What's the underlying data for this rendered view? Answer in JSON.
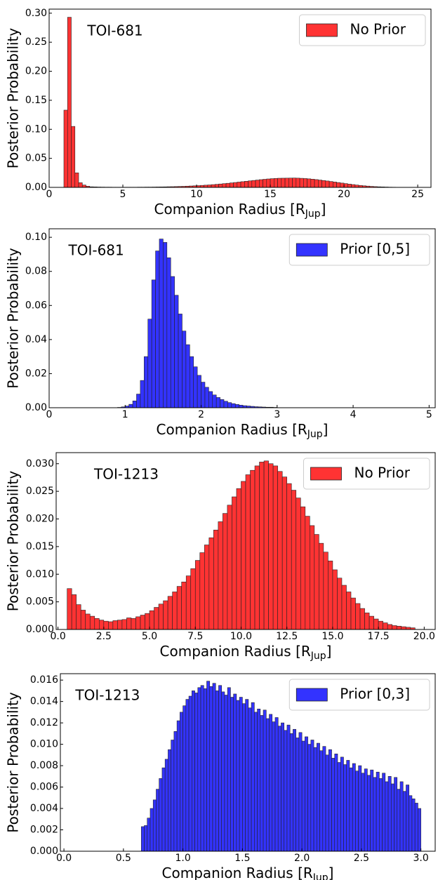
{
  "chart_data": [
    {
      "type": "histogram",
      "annotation": "TOI-681",
      "ylabel": "Posterior Probability",
      "xlabel": [
        "Companion Radius [R",
        "Jup",
        "]"
      ],
      "legend": "upper right",
      "bins": [
        1,
        1.25,
        1.5,
        1.75,
        2,
        2.25,
        2.5,
        2.75,
        3,
        3.25,
        3.5,
        3.75,
        4,
        4.25,
        4.5,
        4.75,
        5,
        5.25,
        5.5,
        5.75,
        6,
        6.25,
        6.5,
        6.75,
        7,
        7.25,
        7.5,
        7.75,
        8,
        8.25,
        8.5,
        8.75,
        9,
        9.25,
        9.5,
        9.75,
        10,
        10.25,
        10.5,
        10.75,
        11,
        11.25,
        11.5,
        11.75,
        12,
        12.25,
        12.5,
        12.75,
        13,
        13.25,
        13.5,
        13.75,
        14,
        14.25,
        14.5,
        14.75,
        15,
        15.25,
        15.5,
        15.75,
        16,
        16.25,
        16.5,
        16.75,
        17,
        17.25,
        17.5,
        17.75,
        18,
        18.25,
        18.5,
        18.75,
        19,
        19.25,
        19.5,
        19.75,
        20,
        20.25,
        20.5,
        20.75,
        21,
        21.25,
        21.5,
        21.75,
        22,
        22.25,
        22.5,
        22.75,
        23,
        23.25,
        23.5,
        23.75,
        24,
        24.25,
        24.5,
        24.75,
        25
      ],
      "series": [
        {
          "name": "No Prior",
          "color": "#ff3333",
          "values": [
            0.133,
            0.293,
            0.105,
            0.025,
            0.008,
            0.004,
            0.002,
            0.001,
            0.0008,
            0.0006,
            0.0005,
            0.0004,
            0.0004,
            0.0003,
            0.0003,
            0.0003,
            0.0003,
            0.0003,
            0.0003,
            0.0003,
            0.0004,
            0.0004,
            0.0005,
            0.0005,
            0.0006,
            0.0007,
            0.0008,
            0.0009,
            0.0011,
            0.0012,
            0.0014,
            0.0016,
            0.0018,
            0.0021,
            0.0024,
            0.0027,
            0.003,
            0.0034,
            0.0038,
            0.0042,
            0.0047,
            0.0052,
            0.0058,
            0.0064,
            0.007,
            0.0077,
            0.0084,
            0.0091,
            0.0098,
            0.0105,
            0.0112,
            0.0119,
            0.0126,
            0.0133,
            0.0139,
            0.0145,
            0.015,
            0.0154,
            0.0157,
            0.0158,
            0.0159,
            0.016,
            0.0161,
            0.0159,
            0.0156,
            0.0152,
            0.0147,
            0.0141,
            0.0134,
            0.0126,
            0.0118,
            0.011,
            0.0101,
            0.0092,
            0.0083,
            0.0074,
            0.0065,
            0.0056,
            0.0048,
            0.004,
            0.0033,
            0.0027,
            0.0022,
            0.0017,
            0.0013,
            0.001,
            0.0008,
            0.0006,
            0.0004,
            0.0003,
            0.0002,
            0.0002,
            0.0001,
            0.0001,
            0.0001,
            0.0001
          ]
        }
      ],
      "xlim": [
        0,
        25.9
      ],
      "ylim": [
        0,
        0.307
      ],
      "xticks": [
        0,
        5,
        10,
        15,
        20,
        25
      ],
      "yticks": [
        {
          "value": 0,
          "label": "0.00"
        },
        {
          "value": 0.05,
          "label": "0.05"
        },
        {
          "value": 0.1,
          "label": "0.10"
        },
        {
          "value": 0.15,
          "label": "0.15"
        },
        {
          "value": 0.2,
          "label": "0.20"
        },
        {
          "value": 0.25,
          "label": "0.25"
        },
        {
          "value": 0.3,
          "label": "0.30"
        }
      ]
    },
    {
      "type": "histogram",
      "annotation": "TOI-681",
      "ylabel": "Posterior Probability",
      "xlabel": [
        "Companion Radius [R",
        "Jup",
        "]"
      ],
      "legend": "upper right",
      "bins": [
        0.9,
        0.95,
        1,
        1.05,
        1.1,
        1.15,
        1.2,
        1.25,
        1.3,
        1.35,
        1.4,
        1.45,
        1.5,
        1.55,
        1.6,
        1.65,
        1.7,
        1.75,
        1.8,
        1.85,
        1.9,
        1.95,
        2,
        2.05,
        2.1,
        2.15,
        2.2,
        2.25,
        2.3,
        2.35,
        2.4,
        2.45,
        2.5,
        2.55,
        2.6,
        2.65,
        2.7,
        2.75,
        2.8,
        2.85,
        2.9,
        2.95,
        3
      ],
      "series": [
        {
          "name": "Prior [0,5]",
          "color": "#3333ff",
          "values": [
            0.0002,
            0.0005,
            0.001,
            0.002,
            0.004,
            0.008,
            0.016,
            0.03,
            0.052,
            0.075,
            0.092,
            0.099,
            0.097,
            0.088,
            0.077,
            0.066,
            0.055,
            0.045,
            0.037,
            0.03,
            0.024,
            0.019,
            0.015,
            0.012,
            0.0095,
            0.0075,
            0.006,
            0.0048,
            0.0038,
            0.003,
            0.0024,
            0.0019,
            0.0015,
            0.0012,
            0.001,
            0.0008,
            0.0006,
            0.0005,
            0.0004,
            0.0003,
            0.0003,
            0.0002
          ]
        }
      ],
      "xlim": [
        0,
        5.08
      ],
      "ylim": [
        0,
        0.105
      ],
      "xticks": [
        0,
        1,
        2,
        3,
        4,
        5
      ],
      "yticks": [
        {
          "value": 0,
          "label": "0.00"
        },
        {
          "value": 0.02,
          "label": "0.02"
        },
        {
          "value": 0.04,
          "label": "0.04"
        },
        {
          "value": 0.06,
          "label": "0.06"
        },
        {
          "value": 0.08,
          "label": "0.08"
        },
        {
          "value": 0.1,
          "label": "0.10"
        }
      ]
    },
    {
      "type": "histogram",
      "annotation": "TOI-1213",
      "ylabel": "Posterior Probability",
      "xlabel": [
        "Companion Radius [R",
        "Jup",
        "]"
      ],
      "legend": "upper right",
      "bins": [
        0.5,
        0.75,
        1,
        1.25,
        1.5,
        1.75,
        2,
        2.25,
        2.5,
        2.75,
        3,
        3.25,
        3.5,
        3.75,
        4,
        4.25,
        4.5,
        4.75,
        5,
        5.25,
        5.5,
        5.75,
        6,
        6.25,
        6.5,
        6.75,
        7,
        7.25,
        7.5,
        7.75,
        8,
        8.25,
        8.5,
        8.75,
        9,
        9.25,
        9.5,
        9.75,
        10,
        10.25,
        10.5,
        10.75,
        11,
        11.25,
        11.5,
        11.75,
        12,
        12.25,
        12.5,
        12.75,
        13,
        13.25,
        13.5,
        13.75,
        14,
        14.25,
        14.5,
        14.75,
        15,
        15.25,
        15.5,
        15.75,
        16,
        16.25,
        16.5,
        16.75,
        17,
        17.25,
        17.5,
        17.75,
        18,
        18.25,
        18.5,
        18.75,
        19,
        19.25,
        19.5
      ],
      "series": [
        {
          "name": "No Prior",
          "color": "#ff3333",
          "values": [
            0.0074,
            0.0063,
            0.0045,
            0.0035,
            0.0028,
            0.0024,
            0.002,
            0.0017,
            0.0015,
            0.0014,
            0.0016,
            0.0017,
            0.0018,
            0.0021,
            0.002,
            0.0023,
            0.0026,
            0.0029,
            0.0034,
            0.004,
            0.0046,
            0.0052,
            0.006,
            0.0068,
            0.0078,
            0.0086,
            0.0097,
            0.011,
            0.0125,
            0.0139,
            0.0153,
            0.0166,
            0.018,
            0.0195,
            0.021,
            0.0225,
            0.024,
            0.0255,
            0.0268,
            0.028,
            0.0288,
            0.0296,
            0.0303,
            0.0305,
            0.03,
            0.0296,
            0.0286,
            0.0276,
            0.0264,
            0.0252,
            0.0238,
            0.0222,
            0.0205,
            0.0188,
            0.0172,
            0.0156,
            0.014,
            0.0124,
            0.0108,
            0.0093,
            0.008,
            0.0068,
            0.0057,
            0.0047,
            0.0038,
            0.003,
            0.0024,
            0.0019,
            0.0015,
            0.0012,
            0.0009,
            0.0007,
            0.0006,
            0.0005,
            0.0004,
            0.0003
          ]
        }
      ],
      "xlim": [
        -0.1,
        20.6
      ],
      "ylim": [
        0,
        0.032
      ],
      "xticks": [
        {
          "value": 0,
          "label": "0.0"
        },
        {
          "value": 2.5,
          "label": "2.5"
        },
        {
          "value": 5,
          "label": "5.0"
        },
        {
          "value": 7.5,
          "label": "7.5"
        },
        {
          "value": 10,
          "label": "10.0"
        },
        {
          "value": 12.5,
          "label": "12.5"
        },
        {
          "value": 15,
          "label": "15.0"
        },
        {
          "value": 17.5,
          "label": "17.5"
        },
        {
          "value": 20,
          "label": "20.0"
        }
      ],
      "yticks": [
        {
          "value": 0,
          "label": "0.000"
        },
        {
          "value": 0.005,
          "label": "0.005"
        },
        {
          "value": 0.01,
          "label": "0.010"
        },
        {
          "value": 0.015,
          "label": "0.015"
        },
        {
          "value": 0.02,
          "label": "0.020"
        },
        {
          "value": 0.025,
          "label": "0.025"
        },
        {
          "value": 0.03,
          "label": "0.030"
        }
      ]
    },
    {
      "type": "histogram",
      "annotation": "TOI-1213",
      "ylabel": "Posterior Probability",
      "xlabel": [
        "Companion Radius [R",
        "Jup",
        "]"
      ],
      "legend": "upper right",
      "bins": [
        0.65,
        0.675,
        0.7,
        0.725,
        0.75,
        0.775,
        0.8,
        0.825,
        0.85,
        0.875,
        0.9,
        0.925,
        0.95,
        0.975,
        1,
        1.025,
        1.05,
        1.075,
        1.1,
        1.125,
        1.15,
        1.175,
        1.2,
        1.225,
        1.25,
        1.275,
        1.3,
        1.325,
        1.35,
        1.375,
        1.4,
        1.425,
        1.45,
        1.475,
        1.5,
        1.525,
        1.55,
        1.575,
        1.6,
        1.625,
        1.65,
        1.675,
        1.7,
        1.725,
        1.75,
        1.775,
        1.8,
        1.825,
        1.85,
        1.875,
        1.9,
        1.925,
        1.95,
        1.975,
        2,
        2.025,
        2.05,
        2.075,
        2.1,
        2.125,
        2.15,
        2.175,
        2.2,
        2.225,
        2.25,
        2.275,
        2.3,
        2.325,
        2.35,
        2.375,
        2.4,
        2.425,
        2.45,
        2.475,
        2.5,
        2.525,
        2.55,
        2.575,
        2.6,
        2.625,
        2.65,
        2.675,
        2.7,
        2.725,
        2.75,
        2.775,
        2.8,
        2.825,
        2.85,
        2.875,
        2.9,
        2.925,
        2.95,
        2.975,
        3
      ],
      "series": [
        {
          "name": "Prior [0,3]",
          "color": "#3333ff",
          "values": [
            0.0023,
            0.0024,
            0.0031,
            0.004,
            0.0048,
            0.0058,
            0.0068,
            0.0078,
            0.0086,
            0.0095,
            0.0104,
            0.0112,
            0.0122,
            0.013,
            0.0136,
            0.0142,
            0.0145,
            0.015,
            0.0148,
            0.0153,
            0.0155,
            0.0152,
            0.0159,
            0.0154,
            0.0157,
            0.015,
            0.0155,
            0.0149,
            0.0146,
            0.0153,
            0.0144,
            0.0147,
            0.0141,
            0.0144,
            0.0138,
            0.0142,
            0.0134,
            0.0139,
            0.013,
            0.0133,
            0.0127,
            0.0132,
            0.0124,
            0.0128,
            0.0121,
            0.0125,
            0.0117,
            0.012,
            0.0113,
            0.0118,
            0.011,
            0.0114,
            0.0106,
            0.0111,
            0.0103,
            0.0107,
            0.01,
            0.0104,
            0.0097,
            0.0101,
            0.0094,
            0.0098,
            0.009,
            0.0095,
            0.0087,
            0.0091,
            0.0083,
            0.0088,
            0.0081,
            0.0085,
            0.0078,
            0.0082,
            0.0075,
            0.008,
            0.0073,
            0.0077,
            0.0071,
            0.0076,
            0.0069,
            0.0074,
            0.0068,
            0.0073,
            0.0065,
            0.007,
            0.0063,
            0.0069,
            0.0058,
            0.0065,
            0.0056,
            0.0062,
            0.0052,
            0.0049,
            0.0045,
            0.004
          ]
        }
      ],
      "xlim": [
        -0.03,
        3.12
      ],
      "ylim": [
        0,
        0.0166
      ],
      "xticks": [
        {
          "value": 0,
          "label": "0.0"
        },
        {
          "value": 0.5,
          "label": "0.5"
        },
        {
          "value": 1,
          "label": "1.0"
        },
        {
          "value": 1.5,
          "label": "1.5"
        },
        {
          "value": 2,
          "label": "2.0"
        },
        {
          "value": 2.5,
          "label": "2.5"
        },
        {
          "value": 3,
          "label": "3.0"
        }
      ],
      "yticks": [
        {
          "value": 0,
          "label": "0.000"
        },
        {
          "value": 0.002,
          "label": "0.002"
        },
        {
          "value": 0.004,
          "label": "0.004"
        },
        {
          "value": 0.006,
          "label": "0.006"
        },
        {
          "value": 0.008,
          "label": "0.008"
        },
        {
          "value": 0.01,
          "label": "0.010"
        },
        {
          "value": 0.012,
          "label": "0.012"
        },
        {
          "value": 0.014,
          "label": "0.014"
        },
        {
          "value": 0.016,
          "label": "0.016"
        }
      ]
    }
  ]
}
